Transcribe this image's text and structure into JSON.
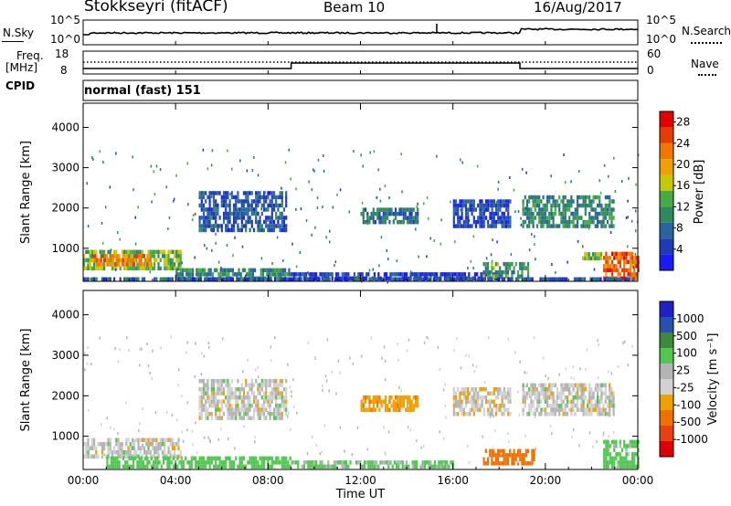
{
  "header": {
    "station": "Stokkseyri (fitACF)",
    "beam": "Beam 10",
    "date": "16/Aug/2017"
  },
  "top_panels": {
    "nsky_label": "N.Sky",
    "nsearch_label": "N.Search",
    "nsky_ticks": [
      "10^5",
      "10^0"
    ],
    "nsearch_ticks": [
      "10^5",
      "10^0"
    ],
    "freq_label_line1": "Freq.",
    "freq_label_line2": "[MHz]",
    "freq_ticks": [
      "18",
      "8"
    ],
    "nave_label": "Nave",
    "nave_ticks": [
      "60",
      "0"
    ],
    "cpid_label": "CPID",
    "cpid_value": "normal (fast) 151"
  },
  "colors": {
    "power_scale": [
      "#1a1aff",
      "#1e3cb4",
      "#2a64a0",
      "#2e8a5a",
      "#46aa46",
      "#c8c800",
      "#f0a000",
      "#f07800",
      "#e63c00",
      "#e60000"
    ],
    "velocity_scale": [
      "#2020c8",
      "#2850b4",
      "#3c8a3c",
      "#50c850",
      "#b4b4b4",
      "#d2d2d2",
      "#f0a000",
      "#f07000",
      "#e84010",
      "#e00000"
    ]
  },
  "chart_data": [
    {
      "type": "heatmap",
      "name": "power",
      "ylabel": "Slant Range [km]",
      "y_ticks": [
        "1000",
        "2000",
        "3000",
        "4000"
      ],
      "ylim": [
        180,
        4600
      ],
      "x_ticks": [
        "00:00",
        "04:00",
        "08:00",
        "12:00",
        "16:00",
        "20:00",
        "00:00"
      ],
      "xlim_hours": [
        0,
        24
      ],
      "colorbar_label": "Power [dB]",
      "colorbar_ticks": [
        "4",
        "8",
        "12",
        "16",
        "20",
        "24",
        "28"
      ],
      "colorbar_range": [
        0,
        30
      ],
      "regions": [
        {
          "t0": 0.0,
          "t1": 4.2,
          "r0": 450,
          "r1": 900,
          "value": 14
        },
        {
          "t0": 0.3,
          "t1": 3.0,
          "r0": 550,
          "r1": 800,
          "value": 22
        },
        {
          "t0": 4.0,
          "t1": 9.0,
          "r0": 200,
          "r1": 420,
          "value": 10
        },
        {
          "t0": 5.0,
          "t1": 8.8,
          "r0": 1400,
          "r1": 2400,
          "value": 6
        },
        {
          "t0": 9.0,
          "t1": 18.0,
          "r0": 200,
          "r1": 350,
          "value": 4
        },
        {
          "t0": 12.0,
          "t1": 14.5,
          "r0": 1600,
          "r1": 2000,
          "value": 8
        },
        {
          "t0": 16.0,
          "t1": 18.5,
          "r0": 1500,
          "r1": 2200,
          "value": 5
        },
        {
          "t0": 17.3,
          "t1": 19.3,
          "r0": 250,
          "r1": 600,
          "value": 12
        },
        {
          "t0": 19.0,
          "t1": 23.0,
          "r0": 1500,
          "r1": 2300,
          "value": 10
        },
        {
          "t0": 21.5,
          "t1": 22.4,
          "r0": 700,
          "r1": 900,
          "value": 14
        },
        {
          "t0": 22.5,
          "t1": 24.0,
          "r0": 200,
          "r1": 900,
          "value": 24
        },
        {
          "t0": 0.0,
          "t1": 24.0,
          "r0": 180,
          "r1": 260,
          "value": 6
        }
      ]
    },
    {
      "type": "heatmap",
      "name": "velocity",
      "ylabel": "Slant Range [km]",
      "y_ticks": [
        "1000",
        "2000",
        "3000",
        "4000"
      ],
      "ylim": [
        180,
        4600
      ],
      "x_ticks": [
        "00:00",
        "04:00",
        "08:00",
        "12:00",
        "16:00",
        "20:00",
        "00:00"
      ],
      "xlim_hours": [
        0,
        24
      ],
      "xlabel": "Time UT",
      "colorbar_label": "Velocity [m s⁻¹]",
      "colorbar_ticks": [
        "1000",
        "500",
        "100",
        "25",
        "-25",
        "-100",
        "-500",
        "-1000"
      ],
      "regions": [
        {
          "t0": 0.0,
          "t1": 4.2,
          "r0": 450,
          "r1": 900,
          "value": 0
        },
        {
          "t0": 1.0,
          "t1": 9.0,
          "r0": 200,
          "r1": 500,
          "value": 60
        },
        {
          "t0": 5.0,
          "t1": 8.8,
          "r0": 1400,
          "r1": 2400,
          "value": 0
        },
        {
          "t0": 9.0,
          "t1": 16.0,
          "r0": 200,
          "r1": 400,
          "value": 40
        },
        {
          "t0": 12.0,
          "t1": 14.5,
          "r0": 1600,
          "r1": 2000,
          "value": -80
        },
        {
          "t0": 16.0,
          "t1": 18.5,
          "r0": 1500,
          "r1": 2200,
          "value": -10
        },
        {
          "t0": 17.3,
          "t1": 19.5,
          "r0": 280,
          "r1": 600,
          "value": -300
        },
        {
          "t0": 19.0,
          "t1": 23.0,
          "r0": 1500,
          "r1": 2300,
          "value": 0
        },
        {
          "t0": 22.5,
          "t1": 24.0,
          "r0": 200,
          "r1": 900,
          "value": 50
        }
      ]
    }
  ]
}
